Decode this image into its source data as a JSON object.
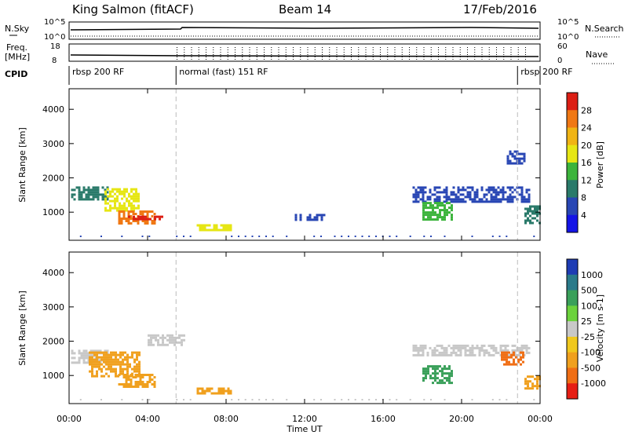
{
  "header": {
    "station": "King Salmon (fitACF)",
    "beam": "Beam 14",
    "date": "17/Feb/2016"
  },
  "top_panels": {
    "nsky_label": "N.Sky",
    "freq_label": "Freq.",
    "freq_unit": "[MHz]",
    "cpid_label": "CPID",
    "nsearch_label": "N.Search",
    "nave_label": "Nave",
    "nsky_ticks": [
      "10^5",
      "10^0"
    ],
    "nsearch_ticks": [
      "10^5",
      "10^0"
    ],
    "freq_ticks": [
      "18",
      "8"
    ],
    "nave_ticks": [
      "60",
      "0"
    ],
    "cpid_modes": [
      {
        "label": "rbsp 200 RF",
        "start_hour": 0.0,
        "end_hour": 5.45
      },
      {
        "label": "normal (fast) 151 RF",
        "start_hour": 5.45,
        "end_hour": 22.85
      },
      {
        "label": "rbsp 200 RF",
        "start_hour": 22.85,
        "end_hour": 24.0
      }
    ]
  },
  "axes": {
    "ylabel": "Slant Range [km]",
    "xlabel": "Time UT",
    "y_ticks": [
      "1000",
      "2000",
      "3000",
      "4000"
    ],
    "x_ticks": [
      "00:00",
      "04:00",
      "08:00",
      "12:00",
      "16:00",
      "20:00",
      "00:00"
    ]
  },
  "power_scale": {
    "label": "Power [dB]",
    "ticks": [
      "4",
      "8",
      "12",
      "16",
      "20",
      "24",
      "28"
    ],
    "colors": [
      "#1414e6",
      "#2846b4",
      "#2a7a6a",
      "#3cb43c",
      "#e6e614",
      "#f0b414",
      "#f07814",
      "#dc1e14"
    ]
  },
  "velocity_scale": {
    "label": "Velocity [m s-1]",
    "ticks": [
      "1000",
      "500",
      "100",
      "25",
      "-25",
      "-100",
      "-500",
      "-1000"
    ],
    "colors": [
      "#1e3cb4",
      "#2a7a8a",
      "#3aa05a",
      "#6cd23c",
      "#c8c8c8",
      "#f0c81e",
      "#f0a01e",
      "#f06e14",
      "#e61e14"
    ]
  },
  "chart_data": [
    {
      "type": "heatmap",
      "title": "Power [dB]",
      "xlabel": "Time UT",
      "ylabel": "Slant Range [km]",
      "xlim": [
        0,
        24
      ],
      "ylim": [
        180,
        4600
      ],
      "patches": [
        {
          "x": [
            0.1,
            2.0
          ],
          "y": [
            1400,
            1750
          ],
          "value": 10
        },
        {
          "x": [
            1.8,
            3.6
          ],
          "y": [
            1050,
            1700
          ],
          "value": 18
        },
        {
          "x": [
            2.5,
            4.4
          ],
          "y": [
            700,
            1050
          ],
          "value": 24
        },
        {
          "x": [
            3.0,
            4.8
          ],
          "y": [
            780,
            900
          ],
          "value": 28
        },
        {
          "x": [
            6.5,
            8.2
          ],
          "y": [
            450,
            650
          ],
          "value": 18
        },
        {
          "x": [
            11.5,
            13.0
          ],
          "y": [
            750,
            950
          ],
          "value": 6
        },
        {
          "x": [
            17.5,
            23.5
          ],
          "y": [
            1300,
            1750
          ],
          "value": 6
        },
        {
          "x": [
            18.0,
            19.5
          ],
          "y": [
            800,
            1300
          ],
          "value": 14
        },
        {
          "x": [
            22.3,
            23.2
          ],
          "y": [
            2400,
            2800
          ],
          "value": 6
        },
        {
          "x": [
            23.2,
            24.0
          ],
          "y": [
            700,
            1200
          ],
          "value": 10
        }
      ]
    },
    {
      "type": "heatmap",
      "title": "Velocity [m s-1]",
      "xlabel": "Time UT",
      "ylabel": "Slant Range [km]",
      "xlim": [
        0,
        24
      ],
      "ylim": [
        180,
        4600
      ],
      "patches": [
        {
          "x": [
            0.1,
            2.0
          ],
          "y": [
            1400,
            1750
          ],
          "value": 0
        },
        {
          "x": [
            1.0,
            3.6
          ],
          "y": [
            1000,
            1700
          ],
          "value": -300
        },
        {
          "x": [
            2.5,
            4.4
          ],
          "y": [
            700,
            1050
          ],
          "value": -200
        },
        {
          "x": [
            4.0,
            6.0
          ],
          "y": [
            1900,
            2200
          ],
          "value": 0
        },
        {
          "x": [
            6.5,
            8.2
          ],
          "y": [
            450,
            650
          ],
          "value": -150
        },
        {
          "x": [
            18.0,
            19.5
          ],
          "y": [
            800,
            1300
          ],
          "value": 120
        },
        {
          "x": [
            17.5,
            23.5
          ],
          "y": [
            1600,
            1900
          ],
          "value": 0
        },
        {
          "x": [
            22.0,
            23.2
          ],
          "y": [
            1300,
            1700
          ],
          "value": -700
        },
        {
          "x": [
            23.2,
            24.0
          ],
          "y": [
            600,
            1000
          ],
          "value": -300
        }
      ]
    }
  ]
}
